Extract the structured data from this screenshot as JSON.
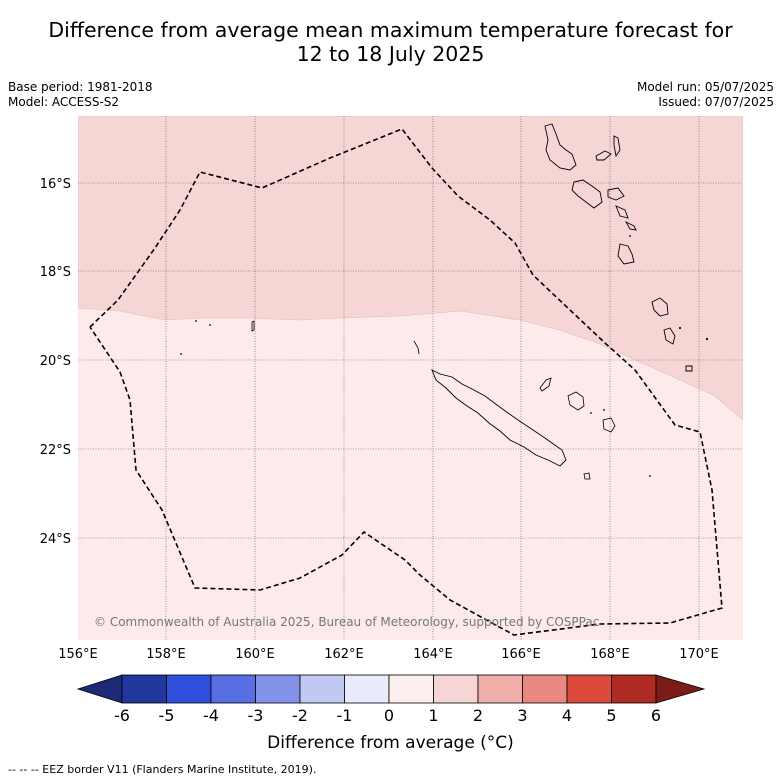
{
  "header": {
    "title_line1": "Difference from average mean maximum temperature forecast for",
    "title_line2": "12 to 18 July 2025",
    "base_period": "Base period: 1981-2018",
    "model": "Model: ACCESS-S2",
    "model_run": "Model run: 05/07/2025",
    "issued": "Issued: 07/07/2025"
  },
  "map": {
    "lon_labels": [
      "156°E",
      "158°E",
      "160°E",
      "162°E",
      "164°E",
      "166°E",
      "168°E",
      "170°E"
    ],
    "lat_labels": [
      "16°S",
      "18°S",
      "20°S",
      "22°S",
      "24°S"
    ],
    "copyright": "© Commonwealth of Australia 2025, Bureau of Meteorology, supported by COSPPac",
    "regions": [
      {
        "name": "anomaly 1 to 2",
        "color": "#f5d6d5"
      },
      {
        "name": "anomaly 0 to 1",
        "color": "#fcebea"
      }
    ],
    "graticule_style": "dotted"
  },
  "colorbar": {
    "ticks": [
      "-6",
      "-5",
      "-4",
      "-3",
      "-2",
      "-1",
      "0",
      "1",
      "2",
      "3",
      "4",
      "5",
      "6"
    ],
    "colors": [
      "#21379e",
      "#2e4fdb",
      "#586fe3",
      "#8493ea",
      "#c1c8f4",
      "#e8ebfb",
      "#fdefef",
      "#f5d6d5",
      "#f0aeaa",
      "#e98a82",
      "#dc4a3d",
      "#ae2a22"
    ],
    "under_color": "#1c2a78",
    "over_color": "#7a1c18",
    "label": "Difference from average (°C)"
  },
  "legend": {
    "eez": "-- -- -- EEZ border V11 (Flanders Marine Institute, 2019)."
  }
}
